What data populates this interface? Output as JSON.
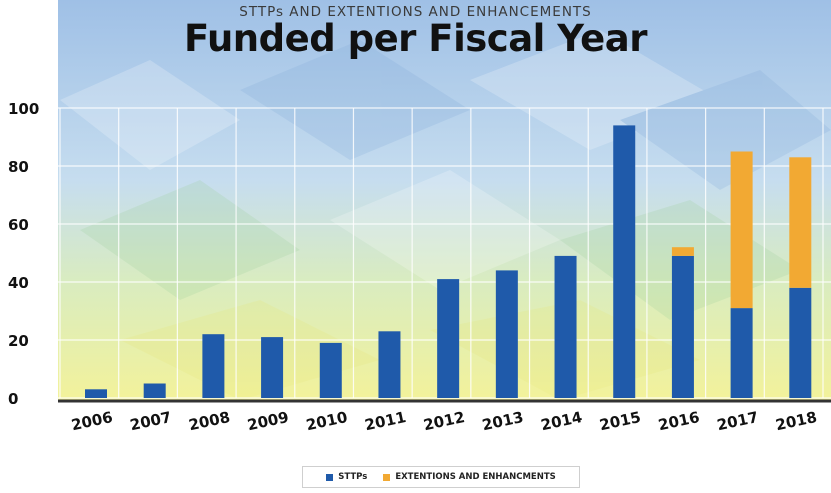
{
  "colors": {
    "stp": "#1f5aaa",
    "ext": "#f2a933",
    "sky_top": "#9fc0e6",
    "grass_bottom": "#f3f29a",
    "axis_line": "#333333",
    "grid": "#ffffff"
  },
  "chart_data": {
    "type": "bar",
    "stacked": true,
    "subtitle": "STTPs AND EXTENTIONS AND ENHANCEMENTS",
    "title": "Funded per Fiscal Year",
    "categories": [
      "2006",
      "2007",
      "2008",
      "2009",
      "2010",
      "2011",
      "2012",
      "2013",
      "2014",
      "2015",
      "2016",
      "2017",
      "2018"
    ],
    "series": [
      {
        "name": "STTPs",
        "values": [
          3,
          5,
          22,
          21,
          19,
          23,
          41,
          44,
          49,
          94,
          49,
          31,
          38
        ]
      },
      {
        "name": "EXTENTIONS AND ENHANCMENTS",
        "values": [
          0,
          0,
          0,
          0,
          0,
          0,
          0,
          0,
          0,
          0,
          3,
          54,
          45
        ]
      }
    ],
    "y_ticks": [
      "0",
      "20",
      "40",
      "60",
      "80",
      "100"
    ],
    "ylim": [
      0,
      115
    ],
    "grid": true,
    "legend_position": "bottom-center"
  },
  "legend": {
    "items": [
      {
        "label": "STTPs"
      },
      {
        "label": "EXTENTIONS AND ENHANCMENTS"
      }
    ]
  }
}
